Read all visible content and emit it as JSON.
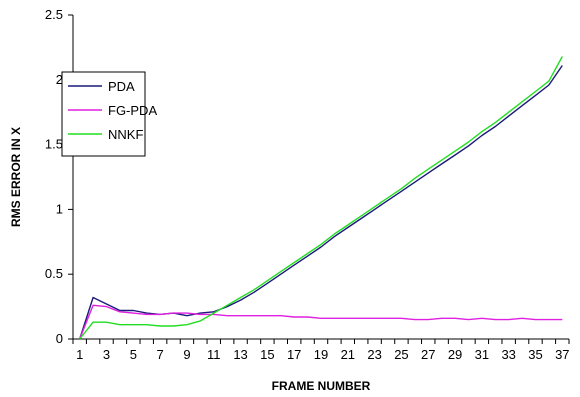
{
  "chart_data": {
    "type": "line",
    "title": "",
    "xlabel": "FRAME NUMBER",
    "ylabel": "RMS ERROR IN X",
    "xlim": [
      1,
      37
    ],
    "ylim": [
      0,
      2.5
    ],
    "x_ticks": [
      1,
      3,
      5,
      7,
      9,
      11,
      13,
      15,
      17,
      19,
      21,
      23,
      25,
      27,
      29,
      31,
      33,
      35,
      37
    ],
    "y_ticks": [
      0,
      0.5,
      1,
      1.5,
      2,
      2.5
    ],
    "y_tick_labels": [
      "0",
      "0.5",
      "1",
      "1.5",
      "2",
      "2.5"
    ],
    "grid": false,
    "legend_position": "left",
    "x": [
      1,
      2,
      3,
      4,
      5,
      6,
      7,
      8,
      9,
      10,
      11,
      12,
      13,
      14,
      15,
      16,
      17,
      18,
      19,
      20,
      21,
      22,
      23,
      24,
      25,
      26,
      27,
      28,
      29,
      30,
      31,
      32,
      33,
      34,
      35,
      36,
      37
    ],
    "series": [
      {
        "name": "PDA",
        "color": "#1a1a7a",
        "values": [
          0,
          0.32,
          0.27,
          0.22,
          0.22,
          0.2,
          0.19,
          0.2,
          0.18,
          0.2,
          0.21,
          0.25,
          0.3,
          0.36,
          0.43,
          0.5,
          0.57,
          0.64,
          0.71,
          0.79,
          0.86,
          0.93,
          1.0,
          1.07,
          1.14,
          1.21,
          1.28,
          1.35,
          1.42,
          1.49,
          1.57,
          1.64,
          1.72,
          1.8,
          1.88,
          1.96,
          2.11
        ]
      },
      {
        "name": "FG-PDA",
        "color": "#e020e0",
        "values": [
          0,
          0.26,
          0.25,
          0.21,
          0.2,
          0.19,
          0.19,
          0.2,
          0.2,
          0.19,
          0.19,
          0.18,
          0.18,
          0.18,
          0.18,
          0.18,
          0.17,
          0.17,
          0.16,
          0.16,
          0.16,
          0.16,
          0.16,
          0.16,
          0.16,
          0.15,
          0.15,
          0.16,
          0.16,
          0.15,
          0.16,
          0.15,
          0.15,
          0.16,
          0.15,
          0.15,
          0.15
        ]
      },
      {
        "name": "NNKF",
        "color": "#22dd22",
        "values": [
          0,
          0.13,
          0.13,
          0.11,
          0.11,
          0.11,
          0.1,
          0.1,
          0.11,
          0.14,
          0.2,
          0.26,
          0.32,
          0.38,
          0.45,
          0.52,
          0.59,
          0.66,
          0.73,
          0.81,
          0.88,
          0.95,
          1.02,
          1.09,
          1.16,
          1.24,
          1.31,
          1.38,
          1.45,
          1.52,
          1.6,
          1.67,
          1.75,
          1.83,
          1.91,
          1.99,
          2.18
        ]
      }
    ]
  }
}
